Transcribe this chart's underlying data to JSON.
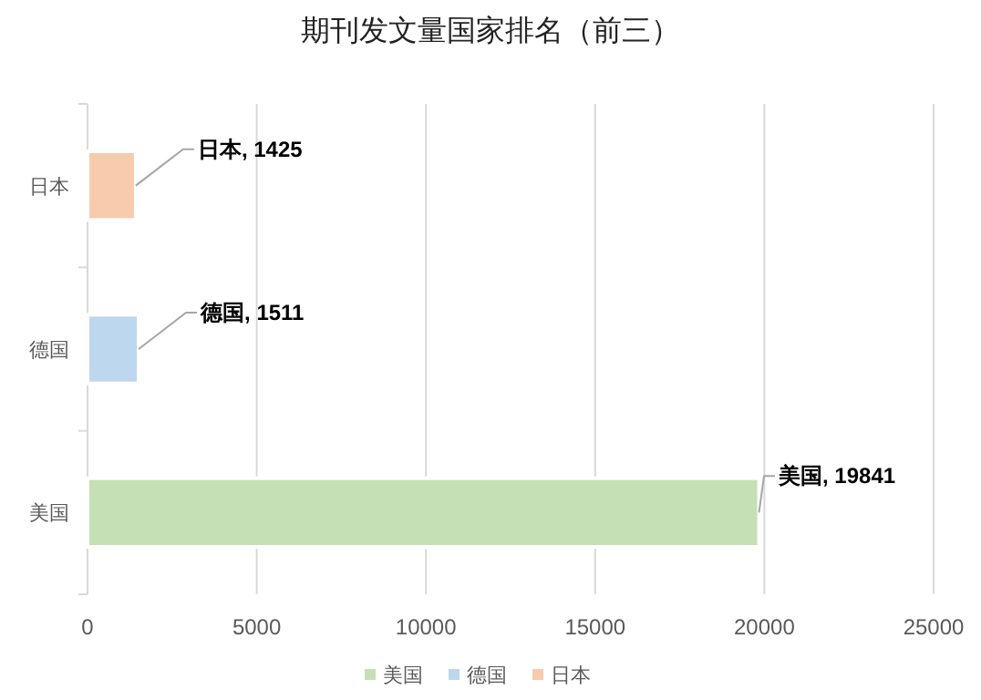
{
  "chart_data": {
    "type": "bar",
    "orientation": "horizontal",
    "title": "期刊发文量国家排名（前三）",
    "categories": [
      "日本",
      "德国",
      "美国"
    ],
    "series": [
      {
        "name": "美国",
        "color": "#c5e0b4",
        "values": [
          null,
          null,
          19841
        ],
        "value_labels": [
          null,
          null,
          "美国, 19841"
        ]
      },
      {
        "name": "德国",
        "color": "#bdd7ee",
        "values": [
          null,
          1511,
          null
        ],
        "value_labels": [
          null,
          "德国, 1511",
          null
        ]
      },
      {
        "name": "日本",
        "color": "#f8cbad",
        "values": [
          1425,
          null,
          null
        ],
        "value_labels": [
          "日本, 1425",
          null,
          null
        ]
      }
    ],
    "xlim": [
      0,
      25000
    ],
    "xticks": [
      0,
      5000,
      10000,
      15000,
      20000,
      25000
    ],
    "grid": "x",
    "legend": "bottom"
  }
}
